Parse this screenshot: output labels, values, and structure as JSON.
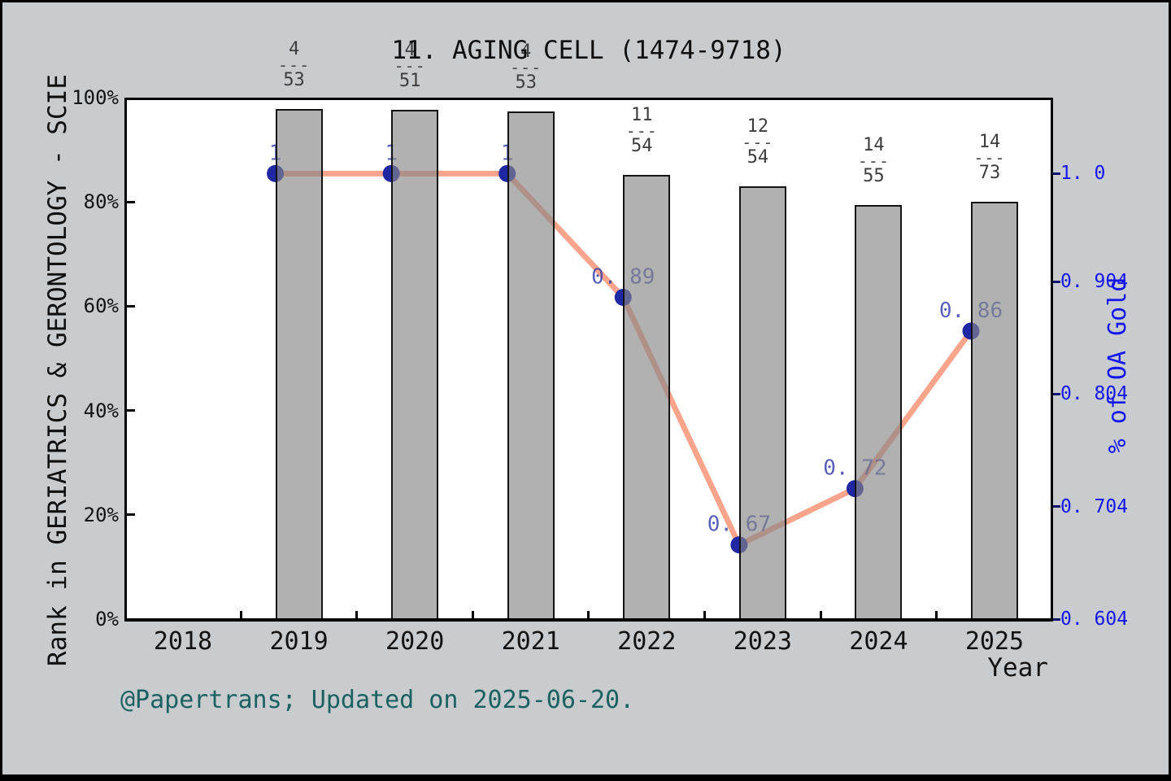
{
  "header": {
    "title": "11. AGING CELL (1474-9718)"
  },
  "footer": {
    "credit": "@Papertrans; Updated on 2025-06-20."
  },
  "colors": {
    "background": "#c9cccf",
    "plot_background": "#ffffff",
    "bar_fill": "#b1b1b1",
    "bar_border": "#141414",
    "line": "#f86c46",
    "marker": "#1f27a3",
    "right_axis_text": "#1515ee",
    "left_axis_text": "#121212",
    "fraction_text": "#3d3d3d",
    "credit_text": "#1c6161"
  },
  "chart_data": {
    "type": "bar",
    "title": "11. AGING CELL (1474-9718)",
    "xlabel": "Year",
    "x_ticks": [
      "2018",
      "2019",
      "2020",
      "2021",
      "2022",
      "2023",
      "2024",
      "2025"
    ],
    "x_range": [
      2018,
      2025
    ],
    "grid": false,
    "left_axis": {
      "label": "Rank in GERIATRICS & GERONTOLOGY - SCIE",
      "tick_values": [
        0,
        20,
        40,
        60,
        80,
        100
      ],
      "tick_labels": [
        "0%",
        "20%",
        "40%",
        "60%",
        "80%",
        "100%"
      ],
      "range": [
        0,
        100
      ]
    },
    "right_axis": {
      "label": "% of OA Gold",
      "tick_values": [
        0.604,
        0.704,
        0.804,
        0.904,
        1.0
      ],
      "tick_labels": [
        "0. 604",
        "0. 704",
        "0. 804",
        "0. 904",
        "1. 0"
      ],
      "range": [
        0.604,
        1.068
      ]
    },
    "categories": [
      2019,
      2020,
      2021,
      2022,
      2023,
      2024,
      2025
    ],
    "series": [
      {
        "name": "rank-percentile-bars",
        "type": "bar",
        "axis": "left",
        "values": [
          97.8,
          97.6,
          97.3,
          85.2,
          83.0,
          79.4,
          80.0
        ],
        "rank_fractions": [
          {
            "num": "4",
            "den": "53"
          },
          {
            "num": "4",
            "den": "51"
          },
          {
            "num": "4",
            "den": "53"
          },
          {
            "num": "11",
            "den": "54"
          },
          {
            "num": "12",
            "den": "54"
          },
          {
            "num": "14",
            "den": "55"
          },
          {
            "num": "14",
            "den": "73"
          }
        ]
      },
      {
        "name": "oa-gold-line",
        "type": "line",
        "axis": "right",
        "values": [
          1.0,
          1.0,
          1.0,
          0.89,
          0.67,
          0.72,
          0.86
        ],
        "point_labels": [
          "1",
          "1",
          "1",
          "0. 89",
          "0. 67",
          "0. 72",
          "0. 86"
        ]
      }
    ],
    "legend": null
  }
}
